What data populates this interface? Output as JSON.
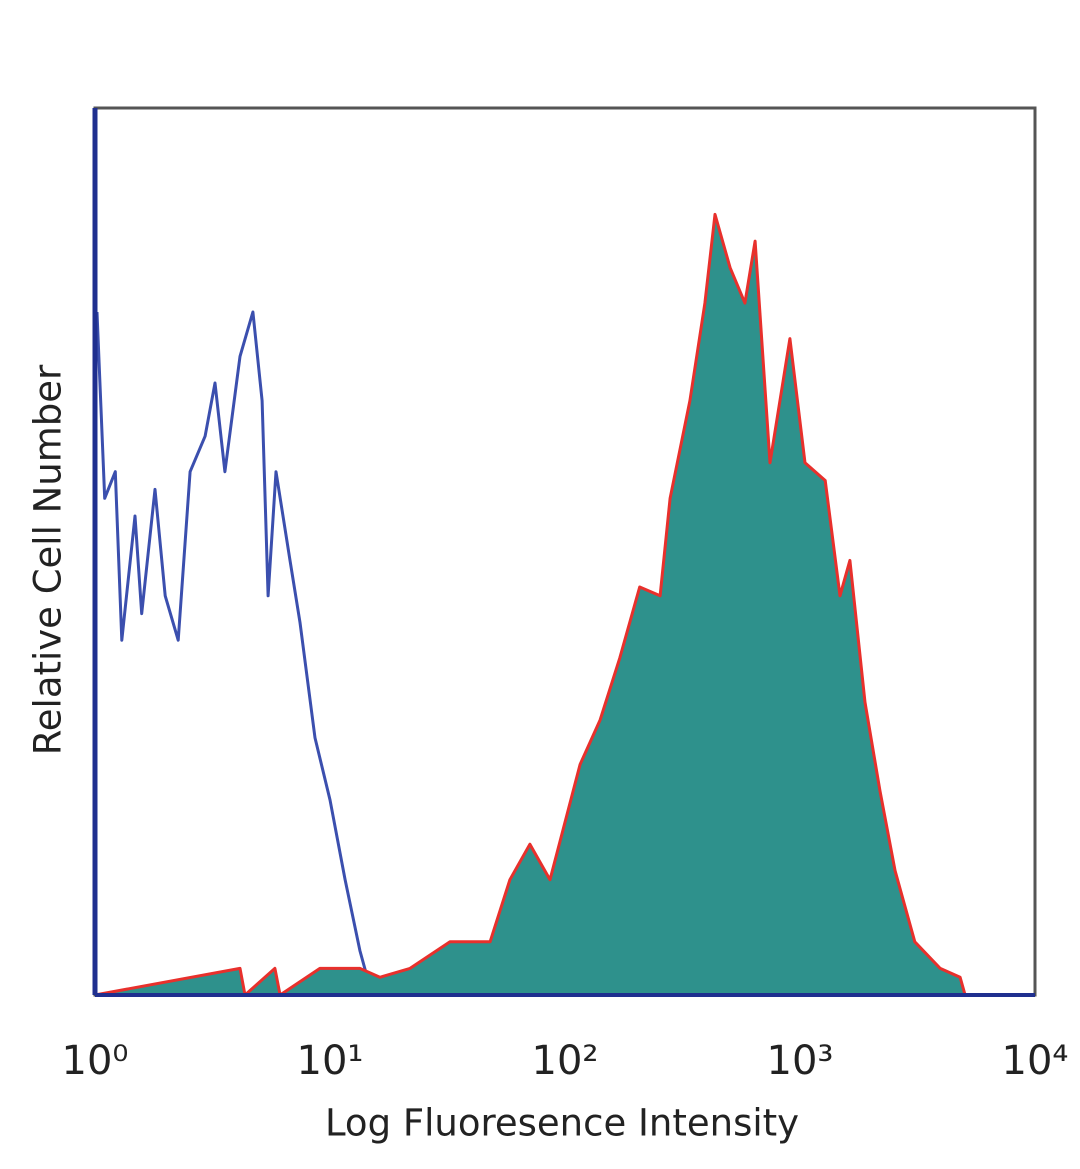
{
  "chart_data": {
    "type": "histogram-overlay",
    "xlabel": "Log Fluoresence Intensity",
    "ylabel": "Relative Cell Number",
    "xscale": "log",
    "xlim": [
      1,
      10000
    ],
    "ylim": [
      0,
      100
    ],
    "xticks": [
      {
        "value": 1,
        "label": "10⁰"
      },
      {
        "value": 10,
        "label": "10¹"
      },
      {
        "value": 100,
        "label": "10²"
      },
      {
        "value": 1000,
        "label": "10³"
      },
      {
        "value": 10000,
        "label": "10⁴"
      }
    ],
    "series": [
      {
        "color": "#3b4fae",
        "filled": false,
        "x": [
          1.02,
          1.1,
          1.22,
          1.3,
          1.48,
          1.58,
          1.8,
          1.99,
          2.26,
          2.54,
          2.94,
          3.24,
          3.57,
          4.14,
          4.7,
          5.14,
          5.45,
          5.89,
          6.76,
          7.45,
          8.63,
          10,
          11.6,
          13.4,
          15.1
        ],
        "values": [
          77,
          56,
          59,
          40,
          54,
          43,
          57,
          45,
          40,
          59,
          63,
          69,
          59,
          72,
          77,
          67,
          45,
          59,
          49,
          42,
          29,
          22,
          13,
          5,
          0
        ]
      },
      {
        "color": "#e8302c",
        "filled": true,
        "fill": "#2e918c",
        "x": [
          1,
          4.14,
          4.35,
          5.83,
          6.13,
          9.06,
          13.4,
          16.3,
          21.9,
          32.4,
          48,
          58.3,
          70.9,
          86.3,
          116,
          141,
          171,
          208,
          254,
          280,
          340,
          394,
          435,
          504,
          583,
          644,
          745,
          906,
          1050,
          1280,
          1480,
          1630,
          1890,
          2190,
          2540,
          3080,
          3950,
          4800,
          5040
        ],
        "values": [
          0,
          3,
          0,
          3,
          0,
          3,
          3,
          2,
          3,
          6,
          6,
          13,
          17,
          13,
          26,
          31,
          38,
          46,
          45,
          56,
          67,
          78,
          88,
          82,
          78,
          85,
          60,
          74,
          60,
          58,
          45,
          49,
          33,
          23,
          14,
          6,
          3,
          2,
          0
        ]
      }
    ]
  }
}
